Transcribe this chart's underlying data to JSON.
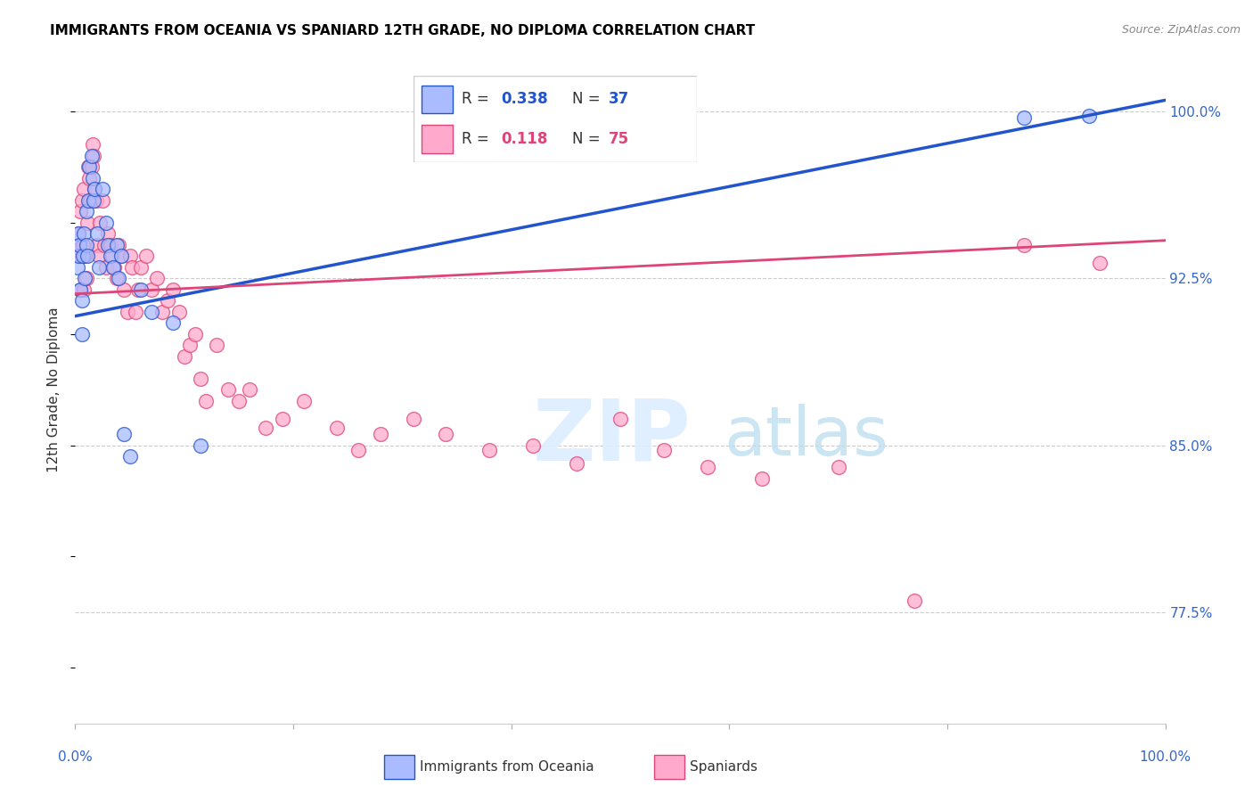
{
  "title": "IMMIGRANTS FROM OCEANIA VS SPANIARD 12TH GRADE, NO DIPLOMA CORRELATION CHART",
  "source": "Source: ZipAtlas.com",
  "ylabel": "12th Grade, No Diploma",
  "ytick_labels": [
    "100.0%",
    "92.5%",
    "85.0%",
    "77.5%"
  ],
  "ytick_values": [
    1.0,
    0.925,
    0.85,
    0.775
  ],
  "xlim": [
    0.0,
    1.0
  ],
  "ylim": [
    0.725,
    1.025
  ],
  "legend_blue_r": "0.338",
  "legend_blue_n": "37",
  "legend_pink_r": "0.118",
  "legend_pink_n": "75",
  "blue_color": "#aabbff",
  "pink_color": "#ffaacc",
  "trendline_blue": "#2255cc",
  "trendline_pink": "#dd4477",
  "blue_trendline_x0": 0.0,
  "blue_trendline_y0": 0.908,
  "blue_trendline_x1": 1.0,
  "blue_trendline_y1": 1.005,
  "pink_trendline_x0": 0.0,
  "pink_trendline_y0": 0.918,
  "pink_trendline_x1": 1.0,
  "pink_trendline_y1": 0.942,
  "blue_points_x": [
    0.002,
    0.003,
    0.003,
    0.004,
    0.005,
    0.006,
    0.006,
    0.007,
    0.008,
    0.009,
    0.01,
    0.01,
    0.011,
    0.012,
    0.013,
    0.015,
    0.016,
    0.017,
    0.018,
    0.02,
    0.022,
    0.025,
    0.028,
    0.03,
    0.032,
    0.035,
    0.038,
    0.04,
    0.042,
    0.045,
    0.05,
    0.06,
    0.07,
    0.09,
    0.115,
    0.87,
    0.93
  ],
  "blue_points_y": [
    0.93,
    0.935,
    0.945,
    0.94,
    0.92,
    0.915,
    0.9,
    0.935,
    0.945,
    0.925,
    0.94,
    0.955,
    0.935,
    0.96,
    0.975,
    0.98,
    0.97,
    0.96,
    0.965,
    0.945,
    0.93,
    0.965,
    0.95,
    0.94,
    0.935,
    0.93,
    0.94,
    0.925,
    0.935,
    0.855,
    0.845,
    0.92,
    0.91,
    0.905,
    0.85,
    0.997,
    0.998
  ],
  "pink_points_x": [
    0.002,
    0.003,
    0.004,
    0.005,
    0.005,
    0.006,
    0.007,
    0.008,
    0.008,
    0.009,
    0.01,
    0.011,
    0.012,
    0.013,
    0.014,
    0.015,
    0.016,
    0.017,
    0.018,
    0.019,
    0.02,
    0.022,
    0.023,
    0.025,
    0.027,
    0.028,
    0.03,
    0.032,
    0.034,
    0.036,
    0.038,
    0.04,
    0.042,
    0.045,
    0.048,
    0.05,
    0.052,
    0.055,
    0.058,
    0.06,
    0.065,
    0.07,
    0.075,
    0.08,
    0.085,
    0.09,
    0.095,
    0.1,
    0.105,
    0.11,
    0.115,
    0.12,
    0.13,
    0.14,
    0.15,
    0.16,
    0.175,
    0.19,
    0.21,
    0.24,
    0.26,
    0.28,
    0.31,
    0.34,
    0.38,
    0.42,
    0.46,
    0.5,
    0.54,
    0.58,
    0.63,
    0.7,
    0.77,
    0.87,
    0.94
  ],
  "pink_points_y": [
    0.938,
    0.945,
    0.935,
    0.92,
    0.955,
    0.96,
    0.94,
    0.965,
    0.92,
    0.935,
    0.925,
    0.95,
    0.975,
    0.97,
    0.96,
    0.975,
    0.985,
    0.98,
    0.965,
    0.96,
    0.94,
    0.935,
    0.95,
    0.96,
    0.94,
    0.93,
    0.945,
    0.94,
    0.935,
    0.93,
    0.925,
    0.94,
    0.935,
    0.92,
    0.91,
    0.935,
    0.93,
    0.91,
    0.92,
    0.93,
    0.935,
    0.92,
    0.925,
    0.91,
    0.915,
    0.92,
    0.91,
    0.89,
    0.895,
    0.9,
    0.88,
    0.87,
    0.895,
    0.875,
    0.87,
    0.875,
    0.858,
    0.862,
    0.87,
    0.858,
    0.848,
    0.855,
    0.862,
    0.855,
    0.848,
    0.85,
    0.842,
    0.862,
    0.848,
    0.84,
    0.835,
    0.84,
    0.78,
    0.94,
    0.932
  ]
}
